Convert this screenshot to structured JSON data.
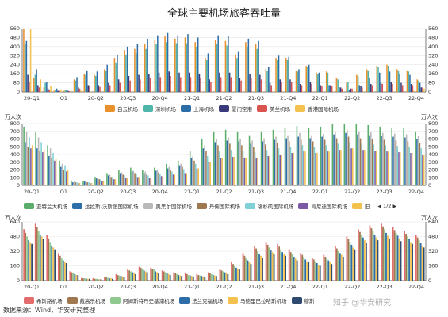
{
  "title": "全球主要机场旅客吞吐量",
  "unit_left": "万人次",
  "unit_right": "万人次",
  "source": "数据来源：Wind，华安研究整理",
  "watermark": "知乎 @华安研究",
  "pager": {
    "text": "1/2"
  },
  "quarters": [
    "20-Q1",
    "Q1",
    "20-Q2",
    "20-Q3",
    "20-Q4",
    "21-Q1",
    "21-Q2",
    "21-Q3",
    "21-Q4",
    "22-Q1",
    "22-Q2",
    "22-Q3",
    "22-Q4"
  ],
  "chart_data": [
    {
      "type": "bar",
      "title": "全球主要机场旅客吞吐量",
      "ylim": [
        0,
        560
      ],
      "yticks": [
        0,
        80,
        160,
        240,
        320,
        400,
        480,
        560
      ],
      "series": [
        {
          "name": "白云机场",
          "color": "#E8912D"
        },
        {
          "name": "深圳机场",
          "color": "#4FB5A8"
        },
        {
          "name": "上海机场",
          "color": "#2E6EA8"
        },
        {
          "name": "厦门空港",
          "color": "#3A3A7A"
        },
        {
          "name": "美兰机场",
          "color": "#D9534F"
        },
        {
          "name": "香港国际机场",
          "color": "#F2C14E"
        }
      ],
      "groups": [
        [
          560,
          420,
          450,
          150,
          90,
          560
        ],
        [
          120,
          150,
          200,
          60,
          40,
          110
        ],
        [
          40,
          80,
          90,
          30,
          20,
          50
        ],
        [
          10,
          20,
          30,
          10,
          10,
          20
        ],
        [
          10,
          15,
          20,
          10,
          5,
          10
        ],
        [
          110,
          100,
          130,
          40,
          30,
          10
        ],
        [
          160,
          150,
          190,
          60,
          50,
          5
        ],
        [
          150,
          140,
          180,
          60,
          45,
          5
        ],
        [
          200,
          190,
          240,
          80,
          60,
          5
        ],
        [
          300,
          260,
          330,
          110,
          80,
          5
        ],
        [
          370,
          330,
          400,
          140,
          100,
          5
        ],
        [
          380,
          340,
          420,
          150,
          110,
          5
        ],
        [
          420,
          380,
          470,
          160,
          120,
          5
        ],
        [
          460,
          420,
          500,
          170,
          130,
          5
        ],
        [
          490,
          440,
          520,
          180,
          140,
          5
        ],
        [
          470,
          430,
          500,
          170,
          130,
          5
        ],
        [
          480,
          430,
          510,
          170,
          130,
          5
        ],
        [
          440,
          400,
          480,
          160,
          120,
          5
        ],
        [
          300,
          280,
          340,
          110,
          90,
          5
        ],
        [
          460,
          420,
          500,
          170,
          130,
          5
        ],
        [
          450,
          410,
          490,
          170,
          130,
          5
        ],
        [
          330,
          300,
          360,
          120,
          100,
          5
        ],
        [
          440,
          400,
          470,
          160,
          120,
          5
        ],
        [
          420,
          380,
          450,
          150,
          110,
          5
        ],
        [
          200,
          190,
          220,
          80,
          60,
          5
        ],
        [
          300,
          280,
          320,
          110,
          90,
          5
        ],
        [
          300,
          280,
          310,
          110,
          90,
          5
        ],
        [
          190,
          180,
          200,
          70,
          60,
          5
        ],
        [
          230,
          220,
          240,
          90,
          70,
          5
        ],
        [
          170,
          160,
          170,
          60,
          50,
          5
        ],
        [
          180,
          170,
          60,
          60,
          50,
          5
        ],
        [
          120,
          110,
          40,
          40,
          30,
          5
        ],
        [
          80,
          90,
          20,
          30,
          30,
          5
        ],
        [
          150,
          140,
          60,
          50,
          40,
          5
        ],
        [
          200,
          190,
          120,
          70,
          60,
          5
        ],
        [
          230,
          220,
          170,
          80,
          70,
          5
        ],
        [
          240,
          230,
          180,
          90,
          70,
          5
        ],
        [
          200,
          190,
          160,
          80,
          60,
          8
        ],
        [
          190,
          180,
          150,
          70,
          60,
          10
        ],
        [
          110,
          100,
          80,
          40,
          40,
          30
        ]
      ]
    },
    {
      "type": "bar",
      "ylim": [
        0,
        800
      ],
      "yticks": [
        0,
        100,
        200,
        300,
        400,
        500,
        600,
        700,
        800
      ],
      "series": [
        {
          "name": "亚特兰大机场",
          "color": "#5BAE6A"
        },
        {
          "name": "达拉斯-沃斯堡国际机场",
          "color": "#2E6EA8"
        },
        {
          "name": "奥黑尔国际机场",
          "color": "#B9B9B9"
        },
        {
          "name": "丹佛国际机场",
          "color": "#A07850"
        },
        {
          "name": "洛杉矶国际机场",
          "color": "#7FD1D6"
        },
        {
          "name": "肯尼迪国际机场",
          "color": "#7B5AA6"
        },
        {
          "name": "旧",
          "color": "#F2C14E"
        }
      ],
      "groups": [
        [
          760,
          560,
          700,
          500,
          620,
          480,
          520
        ],
        [
          690,
          480,
          620,
          450,
          560,
          430,
          460
        ],
        [
          520,
          380,
          480,
          360,
          420,
          320,
          340
        ],
        [
          320,
          240,
          280,
          200,
          260,
          180,
          200
        ],
        [
          60,
          40,
          50,
          40,
          40,
          30,
          30
        ],
        [
          60,
          50,
          50,
          40,
          40,
          30,
          30
        ],
        [
          110,
          90,
          100,
          80,
          80,
          60,
          60
        ],
        [
          160,
          130,
          140,
          110,
          110,
          80,
          80
        ],
        [
          200,
          160,
          170,
          140,
          130,
          100,
          100
        ],
        [
          230,
          180,
          190,
          160,
          150,
          110,
          110
        ],
        [
          200,
          160,
          180,
          140,
          130,
          100,
          100
        ],
        [
          230,
          190,
          200,
          170,
          150,
          120,
          120
        ],
        [
          280,
          220,
          240,
          200,
          180,
          140,
          140
        ],
        [
          320,
          260,
          280,
          240,
          210,
          160,
          160
        ],
        [
          450,
          350,
          380,
          320,
          280,
          220,
          220
        ],
        [
          600,
          480,
          520,
          450,
          380,
          300,
          300
        ],
        [
          700,
          560,
          600,
          520,
          440,
          350,
          350
        ],
        [
          720,
          580,
          620,
          540,
          460,
          370,
          370
        ],
        [
          700,
          570,
          600,
          520,
          450,
          360,
          360
        ],
        [
          650,
          540,
          580,
          500,
          430,
          350,
          350
        ],
        [
          700,
          570,
          610,
          530,
          460,
          380,
          380
        ],
        [
          720,
          590,
          630,
          550,
          480,
          400,
          400
        ],
        [
          750,
          610,
          650,
          570,
          500,
          420,
          420
        ],
        [
          770,
          630,
          680,
          590,
          520,
          440,
          440
        ],
        [
          740,
          610,
          650,
          570,
          500,
          420,
          420
        ],
        [
          760,
          630,
          670,
          590,
          520,
          440,
          440
        ],
        [
          800,
          660,
          700,
          610,
          540,
          460,
          460
        ],
        [
          820,
          680,
          720,
          630,
          560,
          480,
          480
        ],
        [
          800,
          660,
          700,
          610,
          540,
          460,
          460
        ],
        [
          780,
          650,
          690,
          600,
          530,
          450,
          450
        ],
        [
          760,
          640,
          680,
          590,
          520,
          440,
          440
        ],
        [
          750,
          630,
          670,
          580,
          510,
          430,
          430
        ],
        [
          740,
          620,
          660,
          570,
          500,
          420,
          420
        ],
        [
          700,
          600,
          640,
          550,
          480,
          400,
          400
        ]
      ]
    },
    {
      "type": "bar",
      "ylim": [
        0,
        640
      ],
      "yticks": [
        0,
        160,
        320,
        480,
        640
      ],
      "series": [
        {
          "name": "希斯路机场",
          "color": "#E56C6C"
        },
        {
          "name": "戴高乐机场",
          "color": "#A07850"
        },
        {
          "name": "阿姆斯特丹史基浦机场",
          "color": "#8FC98F"
        },
        {
          "name": "法兰克福机场",
          "color": "#2E6EA8"
        },
        {
          "name": "马德里巴拉哈斯机场",
          "color": "#F2C14E"
        },
        {
          "name": "穆斯",
          "color": "#2E4A6E"
        }
      ],
      "groups": [
        [
          560,
          520,
          480,
          440,
          420,
          400
        ],
        [
          620,
          580,
          540,
          500,
          480,
          450
        ],
        [
          500,
          460,
          420,
          380,
          360,
          340
        ],
        [
          300,
          270,
          240,
          220,
          200,
          190
        ],
        [
          100,
          90,
          80,
          70,
          60,
          60
        ],
        [
          30,
          25,
          25,
          20,
          20,
          20
        ],
        [
          25,
          20,
          20,
          15,
          15,
          15
        ],
        [
          40,
          35,
          30,
          25,
          25,
          20
        ],
        [
          70,
          60,
          55,
          50,
          45,
          40
        ],
        [
          120,
          110,
          100,
          90,
          80,
          70
        ],
        [
          150,
          140,
          130,
          110,
          100,
          90
        ],
        [
          140,
          130,
          120,
          100,
          90,
          80
        ],
        [
          110,
          100,
          90,
          80,
          70,
          60
        ],
        [
          90,
          80,
          70,
          60,
          55,
          50
        ],
        [
          80,
          70,
          60,
          55,
          50,
          45
        ],
        [
          70,
          60,
          55,
          50,
          45,
          40
        ],
        [
          90,
          80,
          70,
          60,
          55,
          50
        ],
        [
          120,
          110,
          100,
          90,
          80,
          70
        ],
        [
          200,
          180,
          160,
          140,
          130,
          120
        ],
        [
          300,
          270,
          240,
          220,
          200,
          180
        ],
        [
          380,
          350,
          320,
          290,
          270,
          250
        ],
        [
          420,
          390,
          360,
          330,
          310,
          290
        ],
        [
          400,
          370,
          340,
          310,
          290,
          270
        ],
        [
          340,
          310,
          290,
          260,
          240,
          220
        ],
        [
          300,
          280,
          260,
          230,
          210,
          200
        ],
        [
          250,
          230,
          210,
          190,
          170,
          160
        ],
        [
          280,
          260,
          240,
          220,
          200,
          180
        ],
        [
          380,
          350,
          320,
          300,
          280,
          260
        ],
        [
          480,
          450,
          420,
          390,
          360,
          340
        ],
        [
          560,
          530,
          500,
          470,
          440,
          410
        ],
        [
          600,
          570,
          540,
          500,
          470,
          440
        ],
        [
          620,
          590,
          560,
          520,
          490,
          460
        ],
        [
          580,
          550,
          520,
          490,
          460,
          430
        ],
        [
          540,
          510,
          480,
          450,
          420,
          400
        ],
        [
          500,
          470,
          440,
          410,
          380,
          360
        ]
      ]
    }
  ]
}
